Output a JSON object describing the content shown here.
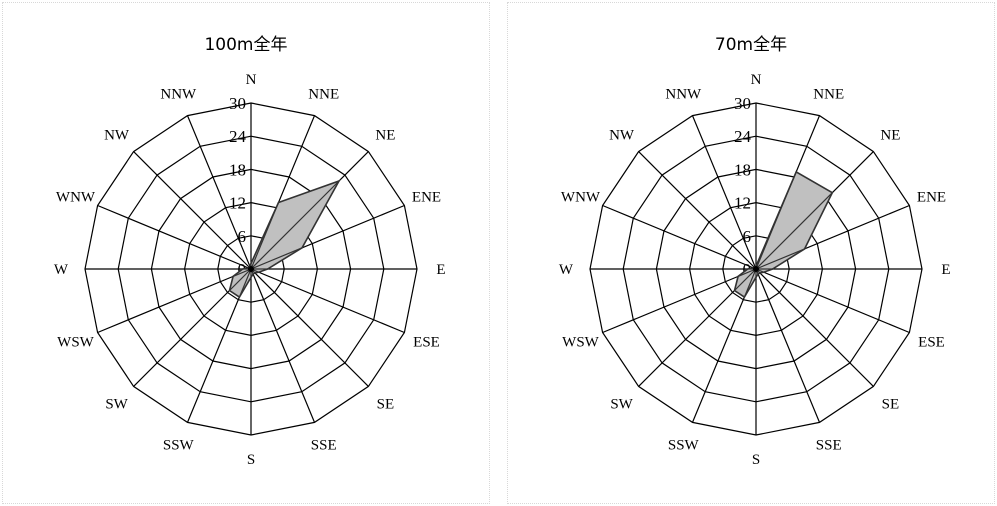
{
  "chart_data": [
    {
      "type": "radar",
      "title": "100m全年",
      "categories": [
        "N",
        "NNE",
        "NE",
        "ENE",
        "E",
        "ESE",
        "SE",
        "SSE",
        "S",
        "SSW",
        "SW",
        "WSW",
        "W",
        "WNW",
        "NW",
        "NNW"
      ],
      "values": [
        1.0,
        13.0,
        22.5,
        10.0,
        3.0,
        1.5,
        1.0,
        1.0,
        1.5,
        5.5,
        5.5,
        3.5,
        1.5,
        0.5,
        0.5,
        0.5
      ],
      "rlim": [
        0,
        30
      ],
      "ticks": [
        "0",
        "6",
        "12",
        "18",
        "24",
        "30"
      ],
      "grid": true,
      "fill_color": "#c0c0c0",
      "line_color": "#333333"
    },
    {
      "type": "radar",
      "title": "70m全年",
      "categories": [
        "N",
        "NNE",
        "NE",
        "ENE",
        "E",
        "ESE",
        "SE",
        "SSE",
        "S",
        "SSW",
        "SW",
        "WSW",
        "W",
        "WNW",
        "NW",
        "NNW"
      ],
      "values": [
        0.5,
        19.0,
        19.5,
        9.5,
        3.0,
        1.5,
        1.0,
        1.0,
        1.5,
        5.5,
        5.5,
        3.5,
        1.5,
        0.5,
        0.5,
        0.5
      ],
      "rlim": [
        0,
        30
      ],
      "ticks": [
        "0",
        "6",
        "12",
        "18",
        "24",
        "30"
      ],
      "grid": true,
      "fill_color": "#c0c0c0",
      "line_color": "#333333"
    }
  ]
}
